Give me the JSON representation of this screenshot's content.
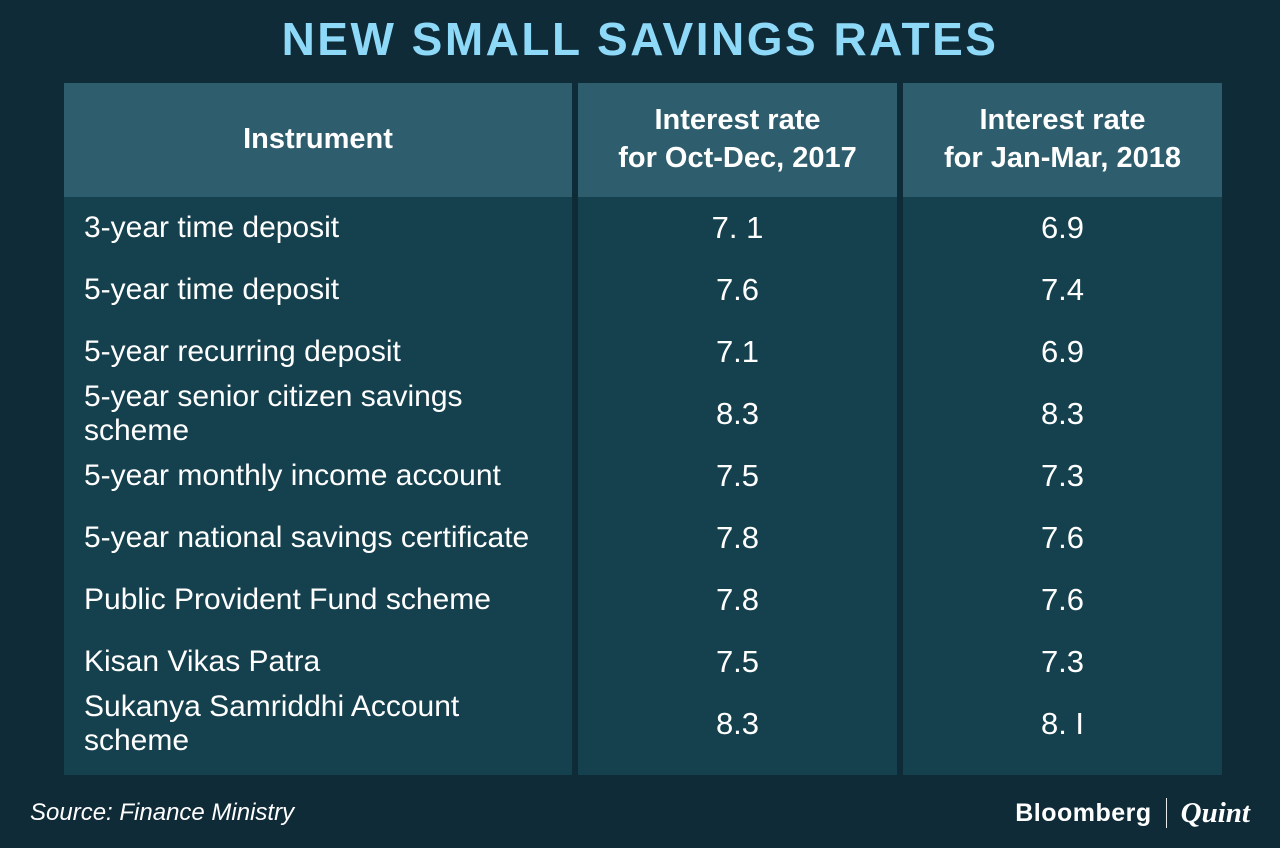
{
  "title": "NEW SMALL SAVINGS RATES",
  "table": {
    "headers": [
      "Instrument",
      "Interest rate\nfor Oct-Dec, 2017",
      "Interest rate\nfor Jan-Mar, 2018"
    ]
  },
  "chart_data": {
    "type": "table",
    "title": "NEW SMALL SAVINGS RATES",
    "columns": [
      "Instrument",
      "Interest rate for Oct-Dec, 2017",
      "Interest rate for Jan-Mar, 2018"
    ],
    "rows": [
      [
        "3-year time deposit",
        "7. 1",
        "6.9"
      ],
      [
        "5-year time deposit",
        "7.6",
        "7.4"
      ],
      [
        "5-year recurring deposit",
        "7.1",
        "6.9"
      ],
      [
        "5-year senior citizen savings scheme",
        "8.3",
        "8.3"
      ],
      [
        "5-year monthly income account",
        "7.5",
        "7.3"
      ],
      [
        "5-year national savings certificate",
        "7.8",
        "7.6"
      ],
      [
        "Public Provident Fund scheme",
        "7.8",
        "7.6"
      ],
      [
        "Kisan Vikas Patra",
        "7.5",
        "7.3"
      ],
      [
        "Sukanya Samriddhi Account scheme",
        "8.3",
        "8. I"
      ]
    ]
  },
  "footer": {
    "source": "Source: Finance Ministry",
    "brand_primary": "Bloomberg",
    "brand_secondary": "Quint"
  },
  "colors": {
    "background": "#0f2b38",
    "header_bg": "#2e5d6d",
    "row_bg": "#15404e",
    "title": "#8ed9f8",
    "text": "#ffffff"
  }
}
